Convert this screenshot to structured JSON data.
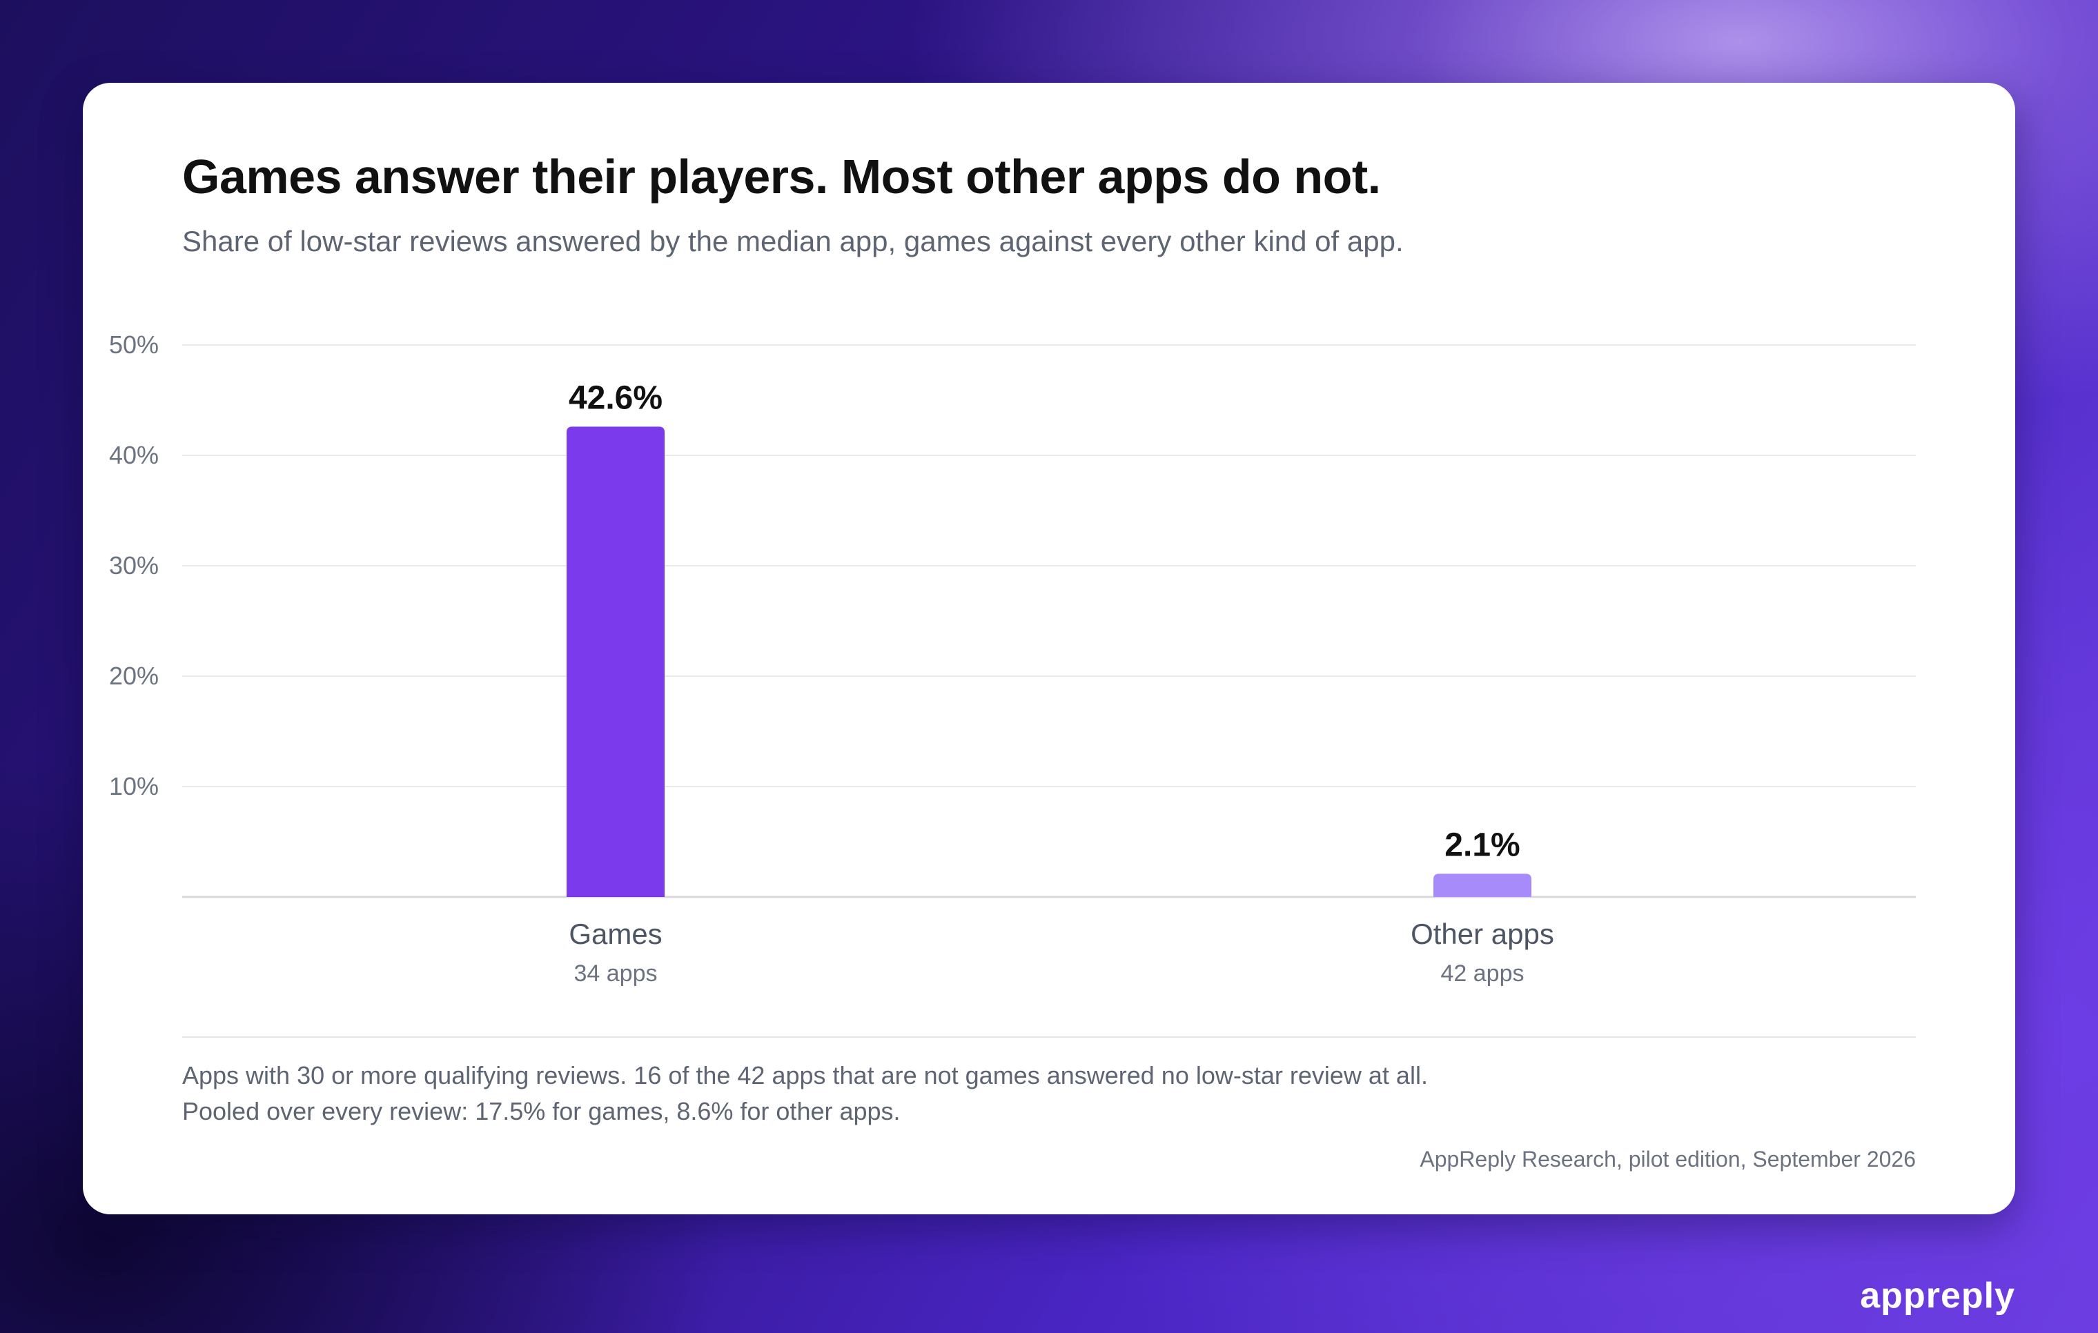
{
  "title": "Games answer their players. Most other apps do not.",
  "subtitle": "Share of low-star reviews answered by the median app, games against every other kind of app.",
  "chart_data": {
    "type": "bar",
    "categories": [
      "Games",
      "Other apps"
    ],
    "category_sublabels": [
      "34 apps",
      "42 apps"
    ],
    "values": [
      42.6,
      2.1
    ],
    "value_labels": [
      "42.6%",
      "2.1%"
    ],
    "ylim": [
      0,
      50
    ],
    "yticks": [
      10,
      20,
      30,
      40,
      50
    ],
    "ytick_labels": [
      "10%",
      "20%",
      "30%",
      "40%",
      "50%"
    ],
    "grid": true,
    "colors": [
      "#7c3aed",
      "#a78bfa"
    ]
  },
  "footnotes": [
    "Apps with 30 or more qualifying reviews. 16 of the 42 apps that are not games answered no low-star review at all.",
    "Pooled over every review: 17.5% for games, 8.6% for other apps."
  ],
  "source": "AppReply Research, pilot edition, September 2026",
  "brand": "appreply"
}
